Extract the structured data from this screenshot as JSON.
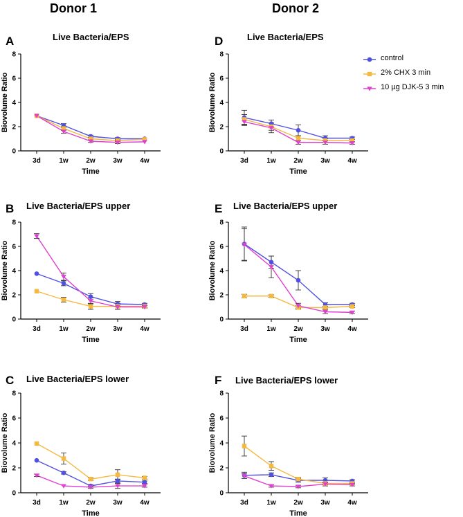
{
  "figure": {
    "donor1_title": "Donor 1",
    "donor2_title": "Donor 2"
  },
  "legend": [
    {
      "name": "control",
      "color": "#5050e0",
      "marker": "circle"
    },
    {
      "name": "2% CHX 3 min",
      "color": "#f5b942",
      "marker": "square"
    },
    {
      "name": "10 µg DJK-5 3 min",
      "color": "#e040d0",
      "marker": "triangle-down"
    }
  ],
  "chart_data": [
    {
      "panel": "A",
      "donor": "Donor 1",
      "type": "line",
      "title": "Live Bacteria/EPS",
      "xlabel": "Time",
      "ylabel": "Biovolume Ratio",
      "categories": [
        "3d",
        "1w",
        "2w",
        "3w",
        "4w"
      ],
      "ylim": [
        0,
        8
      ],
      "yticks": [
        0,
        2,
        4,
        6,
        8
      ],
      "series": [
        {
          "name": "control",
          "values": [
            2.9,
            2.1,
            1.2,
            1.0,
            1.0
          ],
          "errors": [
            0.05,
            0.15,
            0.1,
            0.1,
            0.05
          ]
        },
        {
          "name": "2% CHX 3 min",
          "values": [
            2.9,
            1.85,
            1.0,
            0.85,
            0.95
          ],
          "errors": [
            0.05,
            0.15,
            0.1,
            0.1,
            0.05
          ]
        },
        {
          "name": "10 µg DJK-5 3 min",
          "values": [
            2.9,
            1.6,
            0.8,
            0.7,
            0.75
          ],
          "errors": [
            0.05,
            0.15,
            0.1,
            0.1,
            0.05
          ]
        }
      ]
    },
    {
      "panel": "D",
      "donor": "Donor 2",
      "type": "line",
      "title": "Live Bacteria/EPS",
      "xlabel": "Time",
      "ylabel": "Biovolume Ratio",
      "categories": [
        "3d",
        "1w",
        "2w",
        "3w",
        "4w"
      ],
      "ylim": [
        0,
        8
      ],
      "yticks": [
        0,
        2,
        4,
        6,
        8
      ],
      "series": [
        {
          "name": "control",
          "values": [
            2.75,
            2.25,
            1.7,
            1.05,
            1.05
          ],
          "errors": [
            0.6,
            0.3,
            0.45,
            0.2,
            0.1
          ]
        },
        {
          "name": "2% CHX 3 min",
          "values": [
            2.6,
            2.0,
            1.05,
            0.85,
            0.85
          ],
          "errors": [
            0.4,
            0.3,
            0.2,
            0.15,
            0.1
          ]
        },
        {
          "name": "10 µg DJK-5 3 min",
          "values": [
            2.4,
            1.9,
            0.7,
            0.7,
            0.65
          ],
          "errors": [
            0.3,
            0.4,
            0.15,
            0.15,
            0.1
          ]
        }
      ]
    },
    {
      "panel": "B",
      "donor": "Donor 1",
      "type": "line",
      "title": "Live Bacteria/EPS upper",
      "xlabel": "Time",
      "ylabel": "Biovolume Ratio",
      "categories": [
        "3d",
        "1w",
        "2w",
        "3w",
        "4w"
      ],
      "ylim": [
        0,
        8
      ],
      "yticks": [
        0,
        2,
        4,
        6,
        8
      ],
      "series": [
        {
          "name": "control",
          "values": [
            3.75,
            2.95,
            1.85,
            1.25,
            1.2
          ],
          "errors": [
            0.05,
            0.2,
            0.25,
            0.2,
            0.1
          ]
        },
        {
          "name": "2% CHX 3 min",
          "values": [
            2.3,
            1.6,
            1.05,
            1.05,
            1.05
          ],
          "errors": [
            0.05,
            0.2,
            0.25,
            0.25,
            0.1
          ]
        },
        {
          "name": "10 µg DJK-5 3 min",
          "values": [
            6.85,
            3.5,
            1.5,
            1.0,
            1.0
          ],
          "errors": [
            0.2,
            0.3,
            0.25,
            0.2,
            0.1
          ]
        }
      ]
    },
    {
      "panel": "E",
      "donor": "Donor 2",
      "type": "line",
      "title": "Live Bacteria/EPS upper",
      "xlabel": "Time",
      "ylabel": "Biovolume Ratio",
      "categories": [
        "3d",
        "1w",
        "2w",
        "3w",
        "4w"
      ],
      "ylim": [
        0,
        8
      ],
      "yticks": [
        0,
        2,
        4,
        6,
        8
      ],
      "series": [
        {
          "name": "control",
          "values": [
            6.2,
            4.7,
            3.2,
            1.2,
            1.2
          ],
          "errors": [
            1.4,
            0.5,
            0.8,
            0.15,
            0.1
          ]
        },
        {
          "name": "2% CHX 3 min",
          "values": [
            1.9,
            1.9,
            0.95,
            0.95,
            1.05
          ],
          "errors": [
            0.15,
            0.1,
            0.15,
            0.1,
            0.1
          ]
        },
        {
          "name": "10 µg DJK-5 3 min",
          "values": [
            6.15,
            4.3,
            1.1,
            0.6,
            0.55
          ],
          "errors": [
            1.3,
            0.9,
            0.2,
            0.15,
            0.1
          ]
        }
      ]
    },
    {
      "panel": "C",
      "donor": "Donor 1",
      "type": "line",
      "title": "Live Bacteria/EPS lower",
      "xlabel": "Time",
      "ylabel": "Biovolume Ratio",
      "categories": [
        "3d",
        "1w",
        "2w",
        "3w",
        "4w"
      ],
      "ylim": [
        0,
        8
      ],
      "yticks": [
        0,
        2,
        4,
        6,
        8
      ],
      "series": [
        {
          "name": "control",
          "values": [
            2.6,
            1.6,
            0.55,
            0.95,
            0.85
          ],
          "errors": [
            0.05,
            0.1,
            0.1,
            0.15,
            0.1
          ]
        },
        {
          "name": "2% CHX 3 min",
          "values": [
            3.95,
            2.75,
            1.1,
            1.45,
            1.2
          ],
          "errors": [
            0.05,
            0.45,
            0.1,
            0.4,
            0.1
          ]
        },
        {
          "name": "10 µg DJK-5 3 min",
          "values": [
            1.4,
            0.55,
            0.45,
            0.55,
            0.55
          ],
          "errors": [
            0.1,
            0.05,
            0.1,
            0.2,
            0.1
          ]
        }
      ]
    },
    {
      "panel": "F",
      "donor": "Donor 2",
      "type": "line",
      "title": "Live Bacteria/EPS lower",
      "xlabel": "Time",
      "ylabel": "Biovolume Ratio",
      "categories": [
        "3d",
        "1w",
        "2w",
        "3w",
        "4w"
      ],
      "ylim": [
        0,
        8
      ],
      "yticks": [
        0,
        2,
        4,
        6,
        8
      ],
      "series": [
        {
          "name": "control",
          "values": [
            1.4,
            1.45,
            1.0,
            1.0,
            0.95
          ],
          "errors": [
            0.25,
            0.15,
            0.15,
            0.2,
            0.1
          ]
        },
        {
          "name": "2% CHX 3 min",
          "values": [
            3.75,
            2.15,
            1.1,
            0.75,
            0.75
          ],
          "errors": [
            0.8,
            0.35,
            0.15,
            0.1,
            0.1
          ]
        },
        {
          "name": "10 µg DJK-5 3 min",
          "values": [
            1.35,
            0.55,
            0.5,
            0.7,
            0.65
          ],
          "errors": [
            0.2,
            0.1,
            0.1,
            0.15,
            0.1
          ]
        }
      ]
    }
  ]
}
